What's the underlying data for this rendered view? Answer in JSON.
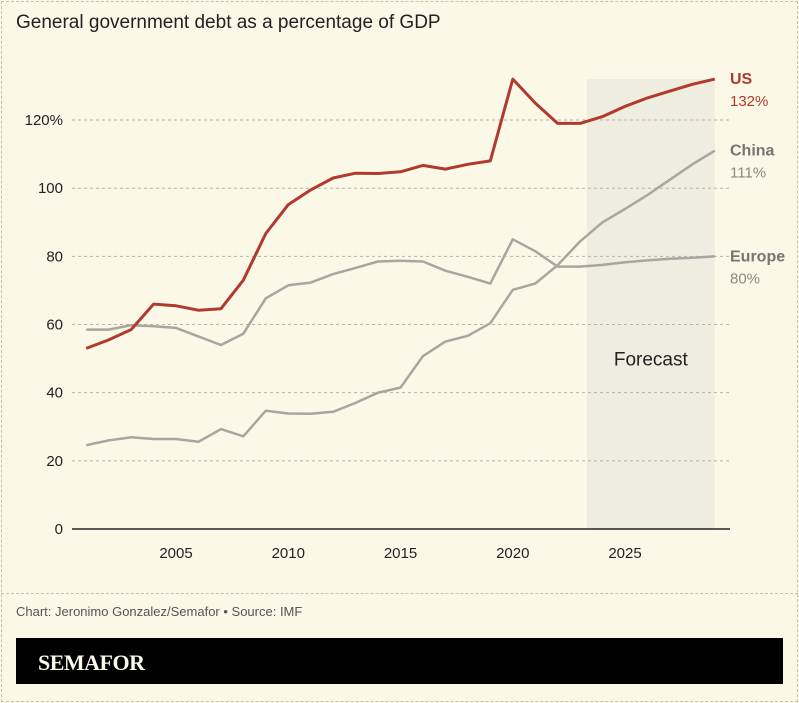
{
  "title": "General government debt as a percentage of GDP",
  "credit": "Chart: Jeronimo Gonzalez/Semafor • Source: IMF",
  "brand": "SEMAFOR",
  "colors": {
    "background": "#fcf8e8",
    "us": "#b03a2e",
    "other": "#a8a6a0",
    "forecast_band": "#efede0",
    "brand_bar": "#000000"
  },
  "chart_data": {
    "type": "line",
    "title": "General government debt as a percentage of GDP",
    "x": [
      2001,
      2002,
      2003,
      2004,
      2005,
      2006,
      2007,
      2008,
      2009,
      2010,
      2011,
      2012,
      2013,
      2014,
      2015,
      2016,
      2017,
      2018,
      2019,
      2020,
      2021,
      2022,
      2023,
      2024,
      2025,
      2026,
      2027,
      2028,
      2029
    ],
    "xticks": [
      "2005",
      "2010",
      "2015",
      "2020",
      "2025"
    ],
    "xtick_values": [
      2005,
      2010,
      2015,
      2020,
      2025
    ],
    "yticks": [
      "0",
      "20",
      "40",
      "60",
      "80",
      "100",
      "120%"
    ],
    "ytick_values": [
      0,
      20,
      40,
      60,
      80,
      100,
      120
    ],
    "ylim": [
      0,
      132
    ],
    "xlim": [
      2001,
      2029
    ],
    "grid": "horizontal dashed",
    "forecast": {
      "label": "Forecast",
      "range": [
        2023.3,
        2029
      ]
    },
    "series": [
      {
        "name": "US",
        "end_label": "132%",
        "color": "#b03a2e",
        "values": [
          53,
          55.5,
          58.5,
          66,
          65.5,
          64.2,
          64.6,
          73,
          86.7,
          95.2,
          99.5,
          103,
          104.4,
          104.3,
          104.8,
          106.7,
          105.6,
          107,
          108,
          132,
          125,
          119,
          119,
          121,
          124,
          126.5,
          128.5,
          130.5,
          132
        ]
      },
      {
        "name": "China",
        "end_label": "111%",
        "color": "#a8a6a0",
        "values": [
          24.6,
          26,
          26.9,
          26.4,
          26.4,
          25.6,
          29.3,
          27.2,
          34.7,
          33.9,
          33.8,
          34.4,
          37,
          40,
          41.5,
          50.7,
          55,
          56.7,
          60.4,
          70.2,
          72,
          77.4,
          84.4,
          90,
          93.9,
          98,
          102.5,
          107,
          111
        ]
      },
      {
        "name": "Europe",
        "end_label": "80%",
        "color": "#a8a6a0",
        "values": [
          58.5,
          58.5,
          59.8,
          59.5,
          59,
          56.5,
          54,
          57.3,
          67.7,
          71.5,
          72.3,
          74.8,
          76.6,
          78.5,
          78.7,
          78.5,
          75.8,
          74,
          72,
          85,
          81.5,
          77,
          77,
          77.5,
          78.3,
          78.8,
          79.3,
          79.6,
          80
        ]
      }
    ]
  }
}
